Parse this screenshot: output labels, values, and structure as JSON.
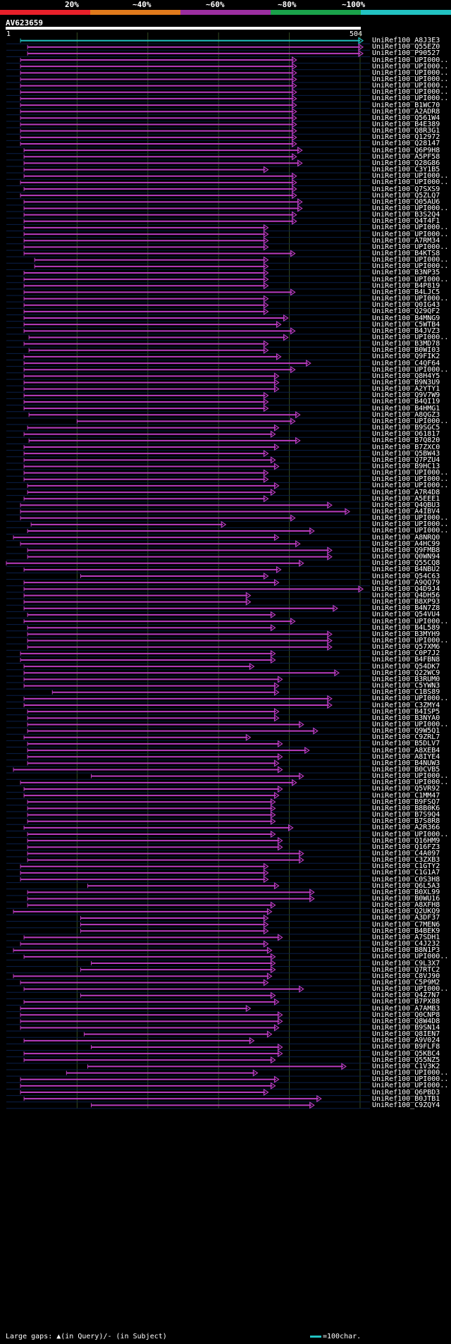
{
  "header": {
    "query_name": "AV623659",
    "start_tick": "1",
    "end_tick": "504",
    "legend_labels": [
      "20%",
      "~40%",
      "~60%",
      "~80%",
      "~100%"
    ],
    "legend_colors": [
      "#e8202a",
      "#e07a1c",
      "#9b2ea0",
      "#1aa24a",
      "#22c2c2"
    ]
  },
  "footer": {
    "gaps_text": "Large gaps: ▲(in Query)/- (in Subject)",
    "scale_text": "=100char."
  },
  "chart_data": {
    "type": "bar",
    "query_length": 504,
    "hit_color": "#b83cc0",
    "top_hit_color": "#22c2c2",
    "hits": [
      {
        "name": "UniRef100_A8J3E3",
        "start": 20,
        "end": 504
      },
      {
        "name": "UniRef100_Q55EZ0",
        "start": 30,
        "end": 504
      },
      {
        "name": "UniRef100_P90527",
        "start": 30,
        "end": 504
      },
      {
        "name": "UniRef100_UPI000..",
        "start": 20,
        "end": 410
      },
      {
        "name": "UniRef100_UPI000..",
        "start": 20,
        "end": 410
      },
      {
        "name": "UniRef100_UPI000..",
        "start": 20,
        "end": 410
      },
      {
        "name": "UniRef100_UPI000..",
        "start": 20,
        "end": 410
      },
      {
        "name": "UniRef100_UPI000..",
        "start": 20,
        "end": 410
      },
      {
        "name": "UniRef100_UPI000..",
        "start": 20,
        "end": 410
      },
      {
        "name": "UniRef100_UPI000..",
        "start": 20,
        "end": 410
      },
      {
        "name": "UniRef100_B1WC70",
        "start": 20,
        "end": 410
      },
      {
        "name": "UniRef100_A2ADR8",
        "start": 20,
        "end": 410
      },
      {
        "name": "UniRef100_Q561W4",
        "start": 20,
        "end": 410
      },
      {
        "name": "UniRef100_B4E389",
        "start": 20,
        "end": 410
      },
      {
        "name": "UniRef100_Q8R3G1",
        "start": 20,
        "end": 410
      },
      {
        "name": "UniRef100_Q12972",
        "start": 20,
        "end": 410
      },
      {
        "name": "UniRef100_Q28147",
        "start": 20,
        "end": 410
      },
      {
        "name": "UniRef100_Q6P9H8",
        "start": 25,
        "end": 418
      },
      {
        "name": "UniRef100_A5PF58",
        "start": 25,
        "end": 410
      },
      {
        "name": "UniRef100_Q28G86",
        "start": 25,
        "end": 418
      },
      {
        "name": "UniRef100_C3Y1B5",
        "start": 25,
        "end": 370
      },
      {
        "name": "UniRef100_UPI000..",
        "start": 25,
        "end": 410
      },
      {
        "name": "UniRef100_UPI000..",
        "start": 20,
        "end": 410
      },
      {
        "name": "UniRef100_Q7SXS9",
        "start": 25,
        "end": 410
      },
      {
        "name": "UniRef100_Q5ZLQ7",
        "start": 20,
        "end": 410
      },
      {
        "name": "UniRef100_Q05AU6",
        "start": 25,
        "end": 418
      },
      {
        "name": "UniRef100_UPI000..",
        "start": 25,
        "end": 418
      },
      {
        "name": "UniRef100_B3S2Q4",
        "start": 25,
        "end": 410
      },
      {
        "name": "UniRef100_Q4T4F1",
        "start": 25,
        "end": 410
      },
      {
        "name": "UniRef100_UPI000..",
        "start": 25,
        "end": 370
      },
      {
        "name": "UniRef100_UPI000..",
        "start": 25,
        "end": 370
      },
      {
        "name": "UniRef100_A7RM34",
        "start": 25,
        "end": 370
      },
      {
        "name": "UniRef100_UPI000..",
        "start": 25,
        "end": 370
      },
      {
        "name": "UniRef100_B4KTS8",
        "start": 25,
        "end": 408
      },
      {
        "name": "UniRef100_UPI000..",
        "start": 40,
        "end": 370
      },
      {
        "name": "UniRef100_UPI000..",
        "start": 40,
        "end": 370
      },
      {
        "name": "UniRef100_B3NP35",
        "start": 25,
        "end": 370
      },
      {
        "name": "UniRef100_UPI000..",
        "start": 25,
        "end": 370
      },
      {
        "name": "UniRef100_B4P819",
        "start": 25,
        "end": 370
      },
      {
        "name": "UniRef100_B4LJC5",
        "start": 25,
        "end": 408
      },
      {
        "name": "UniRef100_UPI000..",
        "start": 25,
        "end": 370
      },
      {
        "name": "UniRef100_Q0IG43",
        "start": 25,
        "end": 370
      },
      {
        "name": "UniRef100_Q29QF2",
        "start": 25,
        "end": 370
      },
      {
        "name": "UniRef100_B4MNG9",
        "start": 25,
        "end": 398
      },
      {
        "name": "UniRef100_C5WTB4",
        "start": 25,
        "end": 388
      },
      {
        "name": "UniRef100_B4JVZ3",
        "start": 25,
        "end": 408
      },
      {
        "name": "UniRef100_UPI000..",
        "start": 32,
        "end": 398
      },
      {
        "name": "UniRef100_B3MD78",
        "start": 25,
        "end": 370
      },
      {
        "name": "UniRef100_B0WI03",
        "start": 32,
        "end": 370
      },
      {
        "name": "UniRef100_Q9FIK2",
        "start": 25,
        "end": 388
      },
      {
        "name": "UniRef100_C4QF64",
        "start": 25,
        "end": 430
      },
      {
        "name": "UniRef100_UPI000..",
        "start": 25,
        "end": 408
      },
      {
        "name": "UniRef100_Q8H4Y5",
        "start": 25,
        "end": 385
      },
      {
        "name": "UniRef100_B9N3U9",
        "start": 25,
        "end": 385
      },
      {
        "name": "UniRef100_A2YTY1",
        "start": 25,
        "end": 385
      },
      {
        "name": "UniRef100_Q9V7W9",
        "start": 25,
        "end": 370
      },
      {
        "name": "UniRef100_B4QI19",
        "start": 25,
        "end": 370
      },
      {
        "name": "UniRef100_B4HMG1",
        "start": 25,
        "end": 370
      },
      {
        "name": "UniRef100_A8QGZ3",
        "start": 32,
        "end": 415
      },
      {
        "name": "UniRef100_UPI000..",
        "start": 100,
        "end": 408
      },
      {
        "name": "UniRef100_B9SGC5",
        "start": 30,
        "end": 385
      },
      {
        "name": "UniRef100_O61817",
        "start": 25,
        "end": 380
      },
      {
        "name": "UniRef100_B7Q820",
        "start": 32,
        "end": 415
      },
      {
        "name": "UniRef100_B7ZXC0",
        "start": 25,
        "end": 385
      },
      {
        "name": "UniRef100_Q5BW43",
        "start": 25,
        "end": 370
      },
      {
        "name": "UniRef100_Q7PZU4",
        "start": 25,
        "end": 380
      },
      {
        "name": "UniRef100_B9HC13",
        "start": 25,
        "end": 385
      },
      {
        "name": "UniRef100_UPI000..",
        "start": 25,
        "end": 370
      },
      {
        "name": "UniRef100_UPI000..",
        "start": 25,
        "end": 370
      },
      {
        "name": "UniRef100_UPI000..",
        "start": 30,
        "end": 385
      },
      {
        "name": "UniRef100_A7R4D8",
        "start": 30,
        "end": 380
      },
      {
        "name": "UniRef100_A5EEE1",
        "start": 25,
        "end": 370
      },
      {
        "name": "UniRef100_Q4QBU3",
        "start": 20,
        "end": 460
      },
      {
        "name": "UniRef100_A4IBV4",
        "start": 20,
        "end": 485
      },
      {
        "name": "UniRef100_UPI000..",
        "start": 20,
        "end": 408
      },
      {
        "name": "UniRef100_UPI000..",
        "start": 35,
        "end": 310
      },
      {
        "name": "UniRef100_UPI000..",
        "start": 30,
        "end": 435
      },
      {
        "name": "UniRef100_A8NRQ0",
        "start": 10,
        "end": 385
      },
      {
        "name": "UniRef100_A4HC99",
        "start": 20,
        "end": 415
      },
      {
        "name": "UniRef100_Q9FMB8",
        "start": 30,
        "end": 460
      },
      {
        "name": "UniRef100_Q0WN94",
        "start": 30,
        "end": 460
      },
      {
        "name": "UniRef100_Q55CQ8",
        "start": 0,
        "end": 420
      },
      {
        "name": "UniRef100_B4NBU2",
        "start": 25,
        "end": 388
      },
      {
        "name": "UniRef100_Q54C63",
        "start": 105,
        "end": 370
      },
      {
        "name": "UniRef100_A9QQ79",
        "start": 25,
        "end": 385
      },
      {
        "name": "UniRef100_Q4D9J4",
        "start": 25,
        "end": 504
      },
      {
        "name": "UniRef100_Q4DH56",
        "start": 25,
        "end": 345
      },
      {
        "name": "UniRef100_B8XP93",
        "start": 25,
        "end": 345
      },
      {
        "name": "UniRef100_B4N7Z8",
        "start": 25,
        "end": 468
      },
      {
        "name": "UniRef100_Q54VU4",
        "start": 30,
        "end": 380
      },
      {
        "name": "UniRef100_UPI000..",
        "start": 25,
        "end": 408
      },
      {
        "name": "UniRef100_B4L589",
        "start": 30,
        "end": 380
      },
      {
        "name": "UniRef100_B3MYH9",
        "start": 30,
        "end": 460
      },
      {
        "name": "UniRef100_UPI000..",
        "start": 30,
        "end": 460
      },
      {
        "name": "UniRef100_Q57XM6",
        "start": 30,
        "end": 460
      },
      {
        "name": "UniRef100_C0P7J2",
        "start": 20,
        "end": 380
      },
      {
        "name": "UniRef100_B4FBN8",
        "start": 20,
        "end": 380
      },
      {
        "name": "UniRef100_Q54DK7",
        "start": 25,
        "end": 350
      },
      {
        "name": "UniRef100_Q22WC9",
        "start": 25,
        "end": 470
      },
      {
        "name": "UniRef100_B3RUM0",
        "start": 25,
        "end": 390
      },
      {
        "name": "UniRef100_C5YWN3",
        "start": 25,
        "end": 385
      },
      {
        "name": "UniRef100_C1BS89",
        "start": 65,
        "end": 385
      },
      {
        "name": "UniRef100_UPI000..",
        "start": 25,
        "end": 460
      },
      {
        "name": "UniRef100_C3ZMY4",
        "start": 25,
        "end": 460
      },
      {
        "name": "UniRef100_B4ISP5",
        "start": 30,
        "end": 385
      },
      {
        "name": "UniRef100_B3NYA0",
        "start": 30,
        "end": 385
      },
      {
        "name": "UniRef100_UPI000..",
        "start": 30,
        "end": 420
      },
      {
        "name": "UniRef100_Q9W5Q1",
        "start": 30,
        "end": 440
      },
      {
        "name": "UniRef100_C9ZRL7",
        "start": 25,
        "end": 345
      },
      {
        "name": "UniRef100_B5DLV7",
        "start": 30,
        "end": 390
      },
      {
        "name": "UniRef100_A8XEB4",
        "start": 30,
        "end": 428
      },
      {
        "name": "UniRef100_A8IYE4",
        "start": 30,
        "end": 390
      },
      {
        "name": "UniRef100_B4NUW3",
        "start": 30,
        "end": 385
      },
      {
        "name": "UniRef100_B0CVB5",
        "start": 10,
        "end": 390
      },
      {
        "name": "UniRef100_UPI000..",
        "start": 120,
        "end": 420
      },
      {
        "name": "UniRef100_UPI000..",
        "start": 20,
        "end": 410
      },
      {
        "name": "UniRef100_Q5VR92",
        "start": 25,
        "end": 390
      },
      {
        "name": "UniRef100_C1MM47",
        "start": 25,
        "end": 385
      },
      {
        "name": "UniRef100_B9FSQ7",
        "start": 30,
        "end": 380
      },
      {
        "name": "UniRef100_B8B0K6",
        "start": 30,
        "end": 380
      },
      {
        "name": "UniRef100_B7S9Q4",
        "start": 30,
        "end": 380
      },
      {
        "name": "UniRef100_B7S8R8",
        "start": 30,
        "end": 380
      },
      {
        "name": "UniRef100_A2R366",
        "start": 25,
        "end": 405
      },
      {
        "name": "UniRef100_UPI000..",
        "start": 30,
        "end": 380
      },
      {
        "name": "UniRef100_Q16HM9",
        "start": 30,
        "end": 390
      },
      {
        "name": "UniRef100_Q16FZ3",
        "start": 30,
        "end": 390
      },
      {
        "name": "UniRef100_C4A097",
        "start": 30,
        "end": 420
      },
      {
        "name": "UniRef100_C3ZXB3",
        "start": 30,
        "end": 420
      },
      {
        "name": "UniRef100_C1GTY2",
        "start": 20,
        "end": 370
      },
      {
        "name": "UniRef100_C1G1A7",
        "start": 20,
        "end": 370
      },
      {
        "name": "UniRef100_C0S3H8",
        "start": 20,
        "end": 370
      },
      {
        "name": "UniRef100_Q6L5A3",
        "start": 115,
        "end": 385
      },
      {
        "name": "UniRef100_B0XL99",
        "start": 30,
        "end": 435
      },
      {
        "name": "UniRef100_B0WU16",
        "start": 30,
        "end": 435
      },
      {
        "name": "UniRef100_A8XFH8",
        "start": 30,
        "end": 380
      },
      {
        "name": "UniRef100_Q2UKQ9",
        "start": 10,
        "end": 375
      },
      {
        "name": "UniRef100_A3DF37",
        "start": 105,
        "end": 370
      },
      {
        "name": "UniRef100_C7MEN6",
        "start": 105,
        "end": 370
      },
      {
        "name": "UniRef100_B4BEK9",
        "start": 105,
        "end": 370
      },
      {
        "name": "UniRef100_A7SDH1",
        "start": 25,
        "end": 390
      },
      {
        "name": "UniRef100_C4J232",
        "start": 20,
        "end": 370
      },
      {
        "name": "UniRef100_B8N1P3",
        "start": 10,
        "end": 375
      },
      {
        "name": "UniRef100_UPI000..",
        "start": 25,
        "end": 380
      },
      {
        "name": "UniRef100_C9L3X7",
        "start": 120,
        "end": 380
      },
      {
        "name": "UniRef100_Q7RTC2",
        "start": 105,
        "end": 380
      },
      {
        "name": "UniRef100_C8VJ90",
        "start": 10,
        "end": 375
      },
      {
        "name": "UniRef100_C5P9M2",
        "start": 20,
        "end": 370
      },
      {
        "name": "UniRef100_UPI000..",
        "start": 25,
        "end": 420
      },
      {
        "name": "UniRef100_Q4Z7N7",
        "start": 105,
        "end": 380
      },
      {
        "name": "UniRef100_B7PX88",
        "start": 25,
        "end": 385
      },
      {
        "name": "UniRef100_A7AMB3",
        "start": 20,
        "end": 345
      },
      {
        "name": "UniRef100_Q0CNP8",
        "start": 20,
        "end": 390
      },
      {
        "name": "UniRef100_Q8W4D8",
        "start": 20,
        "end": 390
      },
      {
        "name": "UniRef100_B9SN14",
        "start": 20,
        "end": 385
      },
      {
        "name": "UniRef100_Q8IEN7",
        "start": 110,
        "end": 375
      },
      {
        "name": "UniRef100_A9V024",
        "start": 25,
        "end": 350
      },
      {
        "name": "UniRef100_B9FLF8",
        "start": 120,
        "end": 390
      },
      {
        "name": "UniRef100_Q5KBC4",
        "start": 25,
        "end": 390
      },
      {
        "name": "UniRef100_Q55NZ5",
        "start": 25,
        "end": 380
      },
      {
        "name": "UniRef100_C1V3K2",
        "start": 115,
        "end": 480
      },
      {
        "name": "UniRef100_UPI000..",
        "start": 85,
        "end": 355
      },
      {
        "name": "UniRef100_UPI000..",
        "start": 20,
        "end": 385
      },
      {
        "name": "UniRef100_UPI000..",
        "start": 20,
        "end": 380
      },
      {
        "name": "UniRef100_Q6PBD3",
        "start": 20,
        "end": 370
      },
      {
        "name": "UniRef100_B0JTB1",
        "start": 25,
        "end": 445
      },
      {
        "name": "UniRef100_C9ZQY4",
        "start": 120,
        "end": 435
      }
    ]
  }
}
